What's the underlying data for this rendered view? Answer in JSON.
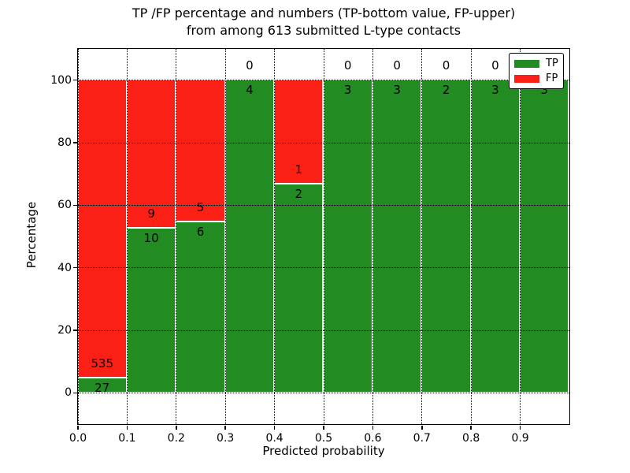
{
  "chart_data": {
    "type": "bar",
    "stacked": true,
    "title_lines": [
      "TP /FP percentage and numbers (TP-bottom value, FP-upper)",
      "from among 613 submitted L-type contacts"
    ],
    "xlabel": "Predicted probability",
    "ylabel": "Percentage",
    "xlim": [
      0.0,
      1.0
    ],
    "ylim": [
      -10,
      110
    ],
    "xticks": [
      "0.0",
      "0.1",
      "0.2",
      "0.3",
      "0.4",
      "0.5",
      "0.6",
      "0.7",
      "0.8",
      "0.9"
    ],
    "yticks": [
      "0",
      "20",
      "40",
      "60",
      "80",
      "100"
    ],
    "grid": "dotted",
    "total_submitted": 613,
    "bins": [
      {
        "x0": 0.0,
        "x1": 0.1,
        "tp": 27,
        "fp": 535,
        "tp_pct": 4.8
      },
      {
        "x0": 0.1,
        "x1": 0.2,
        "tp": 10,
        "fp": 9,
        "tp_pct": 52.6
      },
      {
        "x0": 0.2,
        "x1": 0.3,
        "tp": 6,
        "fp": 5,
        "tp_pct": 54.5
      },
      {
        "x0": 0.3,
        "x1": 0.4,
        "tp": 4,
        "fp": 0,
        "tp_pct": 100
      },
      {
        "x0": 0.4,
        "x1": 0.5,
        "tp": 2,
        "fp": 1,
        "tp_pct": 66.7
      },
      {
        "x0": 0.5,
        "x1": 0.6,
        "tp": 3,
        "fp": 0,
        "tp_pct": 100
      },
      {
        "x0": 0.6,
        "x1": 0.7,
        "tp": 3,
        "fp": 0,
        "tp_pct": 100
      },
      {
        "x0": 0.7,
        "x1": 0.8,
        "tp": 2,
        "fp": 0,
        "tp_pct": 100
      },
      {
        "x0": 0.8,
        "x1": 0.9,
        "tp": 3,
        "fp": 0,
        "tp_pct": 100
      },
      {
        "x0": 0.9,
        "x1": 1.0,
        "tp": 3,
        "fp": 0,
        "tp_pct": 100
      }
    ],
    "legend": {
      "position": "upper right",
      "entries": [
        {
          "label": "TP",
          "color": "#228b22"
        },
        {
          "label": "FP",
          "color": "#fb2015"
        }
      ]
    },
    "colors": {
      "tp": "#228b22",
      "fp": "#fb2015",
      "frame": "#000000",
      "background": "#ffffff"
    }
  }
}
